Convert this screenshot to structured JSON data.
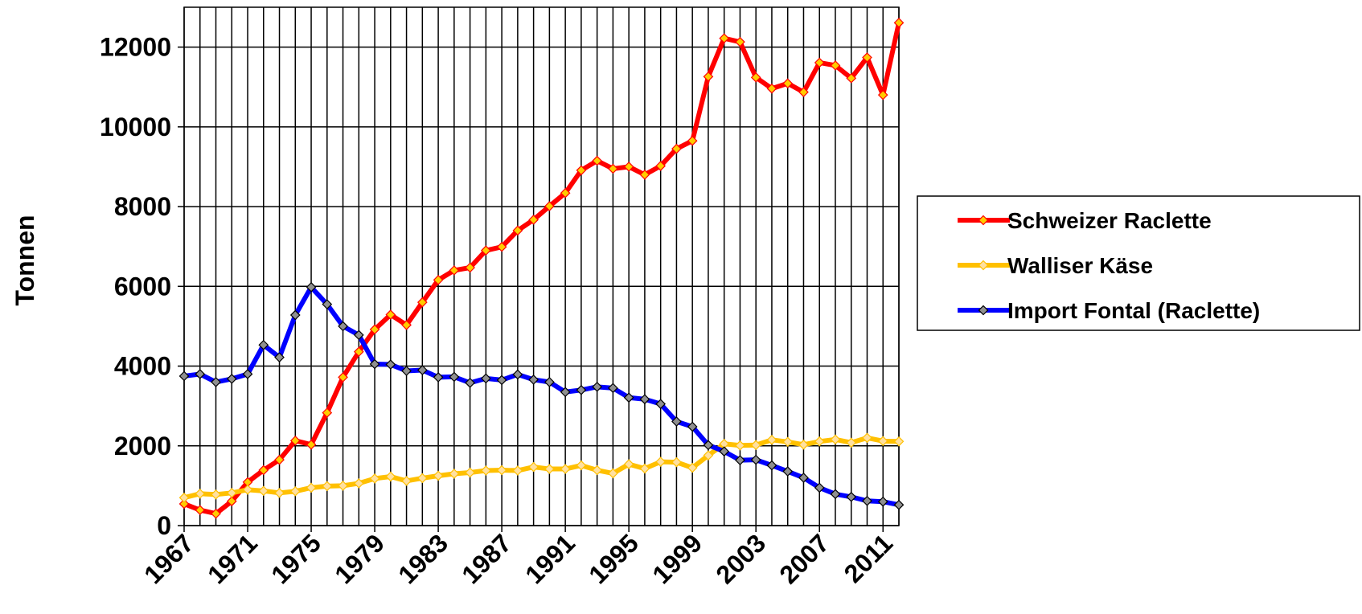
{
  "chart_data": {
    "type": "line",
    "y_label": "Tonnen",
    "x": [
      1967,
      1968,
      1969,
      1970,
      1971,
      1972,
      1973,
      1974,
      1975,
      1976,
      1977,
      1978,
      1979,
      1980,
      1981,
      1982,
      1983,
      1984,
      1985,
      1986,
      1987,
      1988,
      1989,
      1990,
      1991,
      1992,
      1993,
      1994,
      1995,
      1996,
      1997,
      1998,
      1999,
      2000,
      2001,
      2002,
      2003,
      2004,
      2005,
      2006,
      2007,
      2008,
      2009,
      2010,
      2011,
      2012
    ],
    "xlim": [
      1967,
      2012
    ],
    "xticks": [
      1967,
      1971,
      1975,
      1979,
      1983,
      1987,
      1991,
      1995,
      1999,
      2003,
      2007,
      2011
    ],
    "ylim": [
      0,
      13000
    ],
    "yticks": [
      0,
      2000,
      4000,
      6000,
      8000,
      10000,
      12000
    ],
    "grid": true,
    "legend": "right",
    "series": [
      {
        "name": "Schweizer Raclette",
        "color": "#ff0000",
        "marker_color": "#ffcc00",
        "values": [
          545,
          390,
          300,
          610,
          1090,
          1390,
          1650,
          2130,
          2030,
          2830,
          3720,
          4360,
          4920,
          5290,
          5030,
          5600,
          6160,
          6400,
          6470,
          6900,
          6990,
          7400,
          7670,
          8010,
          8340,
          8910,
          9150,
          8950,
          9000,
          8800,
          9020,
          9450,
          9650,
          11260,
          12220,
          12130,
          11240,
          10960,
          11090,
          10870,
          11610,
          11540,
          11220,
          11740,
          10800,
          12610
        ]
      },
      {
        "name": "Walliser Käse",
        "color": "#ffc000",
        "marker_color": "#ffe0a0",
        "values": [
          700,
          800,
          780,
          820,
          900,
          870,
          820,
          860,
          950,
          990,
          1000,
          1060,
          1180,
          1230,
          1120,
          1190,
          1250,
          1300,
          1330,
          1380,
          1390,
          1380,
          1470,
          1420,
          1420,
          1510,
          1390,
          1310,
          1540,
          1430,
          1600,
          1590,
          1450,
          1760,
          2050,
          2010,
          2020,
          2150,
          2100,
          2030,
          2110,
          2160,
          2080,
          2200,
          2120,
          2110
        ]
      },
      {
        "name": "Import Fontal (Raclette)",
        "color": "#0000ff",
        "marker_color": "#909090",
        "values": [
          3750,
          3800,
          3600,
          3680,
          3800,
          4530,
          4220,
          5280,
          5980,
          5550,
          5000,
          4780,
          4050,
          4040,
          3880,
          3900,
          3720,
          3730,
          3580,
          3690,
          3650,
          3790,
          3660,
          3600,
          3350,
          3400,
          3480,
          3450,
          3210,
          3170,
          3050,
          2610,
          2480,
          2020,
          1860,
          1640,
          1650,
          1510,
          1360,
          1200,
          950,
          790,
          720,
          620,
          600,
          520
        ]
      }
    ]
  }
}
